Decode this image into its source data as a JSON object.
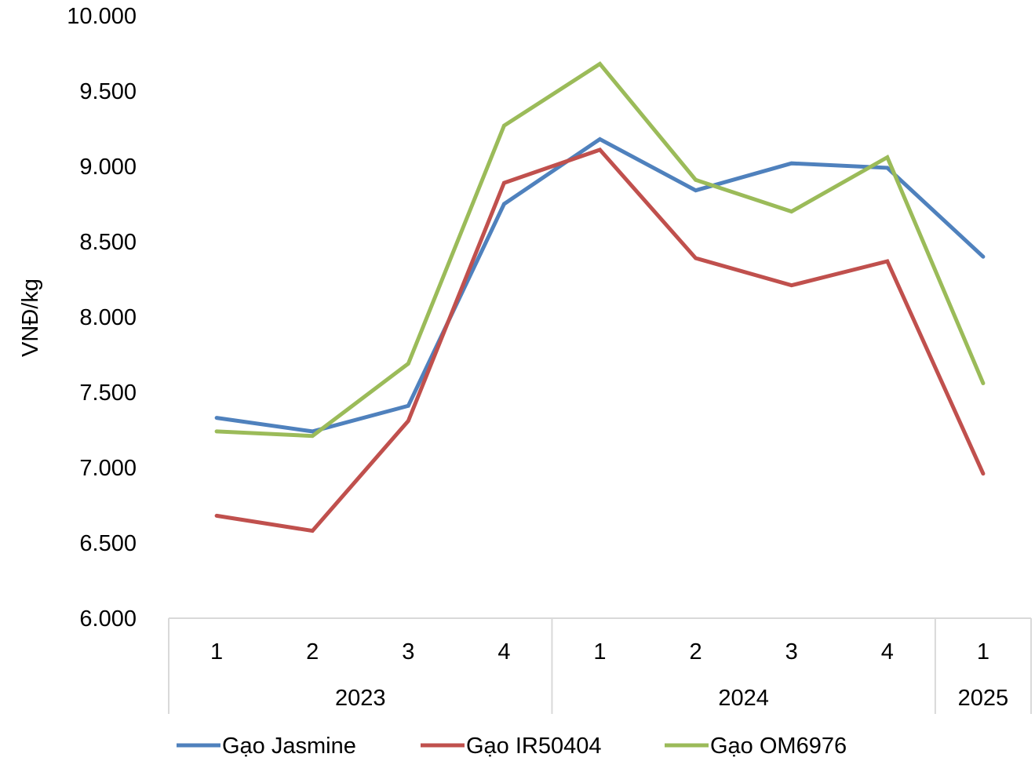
{
  "chart_data": {
    "type": "line",
    "title": "",
    "ylabel": "VNĐ/kg",
    "xlabel": "",
    "ylim": [
      6000,
      10000
    ],
    "yticks": [
      6000,
      6500,
      7000,
      7500,
      8000,
      8500,
      9000,
      9500,
      10000
    ],
    "ytick_labels": [
      "6.000",
      "6.500",
      "7.000",
      "7.500",
      "8.000",
      "8.500",
      "9.000",
      "9.500",
      "10.000"
    ],
    "categories": [
      "1",
      "2",
      "3",
      "4",
      "1",
      "2",
      "3",
      "4",
      "1"
    ],
    "groups": [
      {
        "label": "2023",
        "count": 4
      },
      {
        "label": "2024",
        "count": 4
      },
      {
        "label": "2025",
        "count": 1
      }
    ],
    "grid": false,
    "legend": "bottom",
    "series": [
      {
        "name": "Gạo Jasmine",
        "color": "#4f81bd",
        "values": [
          7330,
          7240,
          7410,
          8750,
          9180,
          8840,
          9020,
          8990,
          8400
        ]
      },
      {
        "name": "Gạo IR50404",
        "color": "#c0504d",
        "values": [
          6680,
          6580,
          7310,
          8890,
          9110,
          8390,
          8210,
          8370,
          6960
        ]
      },
      {
        "name": "Gạo OM6976",
        "color": "#9bbb59",
        "values": [
          7240,
          7210,
          7690,
          9270,
          9680,
          8910,
          8700,
          9060,
          7560
        ]
      }
    ]
  }
}
